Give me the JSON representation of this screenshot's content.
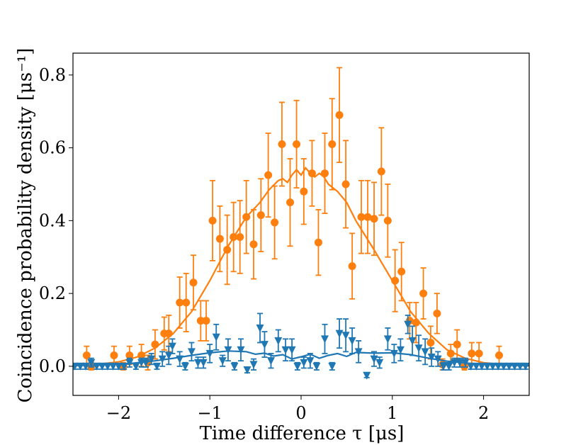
{
  "chart_data": {
    "type": "scatter",
    "title": "",
    "xlabel": "Time difference τ [μs]",
    "ylabel": "Coincidence probability density [μs⁻¹]",
    "xlim": [
      -2.5,
      2.5
    ],
    "ylim": [
      -0.08,
      0.86
    ],
    "xticks": [
      -2,
      -1,
      0,
      1,
      2
    ],
    "xtick_labels": [
      "−2",
      "−1",
      "0",
      "1",
      "2"
    ],
    "yticks": [
      0.0,
      0.2,
      0.4,
      0.6,
      0.8
    ],
    "ytick_labels": [
      "0.0",
      "0.2",
      "0.4",
      "0.6",
      "0.8"
    ],
    "grid": false,
    "series": [
      {
        "name": "orange",
        "marker": "circle",
        "color": "#ff7f0e",
        "points": [
          {
            "x": -2.35,
            "y": 0.03,
            "err": 0.025
          },
          {
            "x": -2.3,
            "y": 0.0,
            "err": 0.01
          },
          {
            "x": -2.05,
            "y": 0.03,
            "err": 0.025
          },
          {
            "x": -1.95,
            "y": 0.0,
            "err": 0.01
          },
          {
            "x": -1.88,
            "y": 0.03,
            "err": 0.025
          },
          {
            "x": -1.75,
            "y": 0.03,
            "err": 0.03
          },
          {
            "x": -1.68,
            "y": 0.01,
            "err": 0.02
          },
          {
            "x": -1.6,
            "y": 0.06,
            "err": 0.04
          },
          {
            "x": -1.5,
            "y": 0.09,
            "err": 0.045
          },
          {
            "x": -1.45,
            "y": 0.09,
            "err": 0.05
          },
          {
            "x": -1.33,
            "y": 0.175,
            "err": 0.07
          },
          {
            "x": -1.26,
            "y": 0.175,
            "err": 0.08
          },
          {
            "x": -1.18,
            "y": 0.23,
            "err": 0.075
          },
          {
            "x": -1.1,
            "y": 0.125,
            "err": 0.055
          },
          {
            "x": -1.04,
            "y": 0.125,
            "err": 0.055
          },
          {
            "x": -0.97,
            "y": 0.4,
            "err": 0.11
          },
          {
            "x": -0.89,
            "y": 0.35,
            "err": 0.09
          },
          {
            "x": -0.81,
            "y": 0.32,
            "err": 0.095
          },
          {
            "x": -0.74,
            "y": 0.355,
            "err": 0.095
          },
          {
            "x": -0.67,
            "y": 0.355,
            "err": 0.1
          },
          {
            "x": -0.6,
            "y": 0.41,
            "err": 0.1
          },
          {
            "x": -0.52,
            "y": 0.335,
            "err": 0.095
          },
          {
            "x": -0.44,
            "y": 0.415,
            "err": 0.1
          },
          {
            "x": -0.36,
            "y": 0.525,
            "err": 0.115
          },
          {
            "x": -0.29,
            "y": 0.395,
            "err": 0.1
          },
          {
            "x": -0.21,
            "y": 0.61,
            "err": 0.115
          },
          {
            "x": -0.12,
            "y": 0.45,
            "err": 0.12
          },
          {
            "x": -0.05,
            "y": 0.61,
            "err": 0.12
          },
          {
            "x": 0.03,
            "y": 0.48,
            "err": 0.09
          },
          {
            "x": 0.12,
            "y": 0.53,
            "err": 0.09
          },
          {
            "x": 0.19,
            "y": 0.34,
            "err": 0.09
          },
          {
            "x": 0.26,
            "y": 0.53,
            "err": 0.11
          },
          {
            "x": 0.34,
            "y": 0.61,
            "err": 0.125
          },
          {
            "x": 0.42,
            "y": 0.69,
            "err": 0.13
          },
          {
            "x": 0.49,
            "y": 0.5,
            "err": 0.12
          },
          {
            "x": 0.56,
            "y": 0.275,
            "err": 0.09
          },
          {
            "x": 0.66,
            "y": 0.41,
            "err": 0.1
          },
          {
            "x": 0.73,
            "y": 0.41,
            "err": 0.1
          },
          {
            "x": 0.8,
            "y": 0.405,
            "err": 0.1
          },
          {
            "x": 0.88,
            "y": 0.535,
            "err": 0.12
          },
          {
            "x": 0.95,
            "y": 0.4,
            "err": 0.1
          },
          {
            "x": 1.03,
            "y": 0.235,
            "err": 0.085
          },
          {
            "x": 1.1,
            "y": 0.26,
            "err": 0.08
          },
          {
            "x": 1.19,
            "y": 0.125,
            "err": 0.05
          },
          {
            "x": 1.26,
            "y": 0.12,
            "err": 0.055
          },
          {
            "x": 1.34,
            "y": 0.2,
            "err": 0.07
          },
          {
            "x": 1.42,
            "y": 0.065,
            "err": 0.045
          },
          {
            "x": 1.49,
            "y": 0.145,
            "err": 0.055
          },
          {
            "x": 1.55,
            "y": 0.005,
            "err": 0.015
          },
          {
            "x": 1.64,
            "y": 0.035,
            "err": 0.025
          },
          {
            "x": 1.71,
            "y": 0.06,
            "err": 0.04
          },
          {
            "x": 1.79,
            "y": 0.0,
            "err": 0.01
          },
          {
            "x": 1.87,
            "y": 0.035,
            "err": 0.03
          },
          {
            "x": 1.95,
            "y": 0.035,
            "err": 0.03
          },
          {
            "x": 2.17,
            "y": 0.03,
            "err": 0.025
          }
        ],
        "fit": {
          "x": [
            -2.5,
            -2.25,
            -2.0,
            -1.8,
            -1.6,
            -1.4,
            -1.2,
            -1.0,
            -0.8,
            -0.6,
            -0.45,
            -0.35,
            -0.25,
            -0.2,
            -0.15,
            -0.1,
            -0.05,
            0.0,
            0.05,
            0.1,
            0.15,
            0.2,
            0.25,
            0.3,
            0.4,
            0.5,
            0.6,
            0.8,
            1.0,
            1.2,
            1.4,
            1.6,
            1.8,
            2.0,
            2.25,
            2.5
          ],
          "y": [
            0.002,
            0.005,
            0.012,
            0.025,
            0.05,
            0.09,
            0.15,
            0.235,
            0.33,
            0.41,
            0.45,
            0.485,
            0.51,
            0.515,
            0.505,
            0.525,
            0.54,
            0.525,
            0.545,
            0.53,
            0.52,
            0.53,
            0.52,
            0.5,
            0.48,
            0.45,
            0.4,
            0.32,
            0.235,
            0.15,
            0.09,
            0.045,
            0.022,
            0.01,
            0.004,
            0.001
          ]
        }
      },
      {
        "name": "blue",
        "marker": "triangle_down",
        "color": "#1f77b4",
        "points": [
          {
            "x": -2.48,
            "y": 0.0,
            "err": 0.008
          },
          {
            "x": -2.42,
            "y": 0.0,
            "err": 0.008
          },
          {
            "x": -2.36,
            "y": 0.0,
            "err": 0.008
          },
          {
            "x": -2.3,
            "y": 0.01,
            "err": 0.012
          },
          {
            "x": -2.24,
            "y": 0.0,
            "err": 0.008
          },
          {
            "x": -2.18,
            "y": 0.0,
            "err": 0.008
          },
          {
            "x": -2.12,
            "y": 0.0,
            "err": 0.008
          },
          {
            "x": -2.06,
            "y": 0.0,
            "err": 0.008
          },
          {
            "x": -2.0,
            "y": 0.0,
            "err": 0.008
          },
          {
            "x": -1.94,
            "y": 0.0,
            "err": 0.008
          },
          {
            "x": -1.88,
            "y": 0.01,
            "err": 0.012
          },
          {
            "x": -1.81,
            "y": 0.0,
            "err": 0.008
          },
          {
            "x": -1.75,
            "y": 0.01,
            "err": 0.012
          },
          {
            "x": -1.7,
            "y": 0.01,
            "err": 0.012
          },
          {
            "x": -1.64,
            "y": 0.02,
            "err": 0.015
          },
          {
            "x": -1.58,
            "y": 0.0,
            "err": 0.008
          },
          {
            "x": -1.52,
            "y": 0.02,
            "err": 0.02
          },
          {
            "x": -1.45,
            "y": 0.03,
            "err": 0.025
          },
          {
            "x": -1.41,
            "y": 0.055,
            "err": 0.02
          },
          {
            "x": -1.33,
            "y": 0.02,
            "err": 0.02
          },
          {
            "x": -1.27,
            "y": 0.0,
            "err": 0.01
          },
          {
            "x": -1.2,
            "y": 0.04,
            "err": 0.025
          },
          {
            "x": -1.13,
            "y": 0.01,
            "err": 0.015
          },
          {
            "x": -1.07,
            "y": 0.01,
            "err": 0.015
          },
          {
            "x": -1.0,
            "y": 0.035,
            "err": 0.025
          },
          {
            "x": -0.93,
            "y": 0.08,
            "err": 0.035
          },
          {
            "x": -0.86,
            "y": 0.015,
            "err": 0.015
          },
          {
            "x": -0.8,
            "y": 0.045,
            "err": 0.03
          },
          {
            "x": -0.73,
            "y": 0.0,
            "err": 0.01
          },
          {
            "x": -0.66,
            "y": 0.045,
            "err": 0.03
          },
          {
            "x": -0.59,
            "y": -0.01,
            "err": 0.008
          },
          {
            "x": -0.52,
            "y": 0.005,
            "err": 0.015
          },
          {
            "x": -0.45,
            "y": 0.105,
            "err": 0.04
          },
          {
            "x": -0.4,
            "y": 0.06,
            "err": 0.035
          },
          {
            "x": -0.33,
            "y": 0.015,
            "err": 0.02
          },
          {
            "x": -0.25,
            "y": 0.07,
            "err": 0.03
          },
          {
            "x": -0.17,
            "y": 0.045,
            "err": 0.03
          },
          {
            "x": -0.1,
            "y": 0.045,
            "err": 0.03
          },
          {
            "x": -0.04,
            "y": 0.0,
            "err": 0.01
          },
          {
            "x": 0.03,
            "y": 0.01,
            "err": 0.015
          },
          {
            "x": 0.1,
            "y": 0.015,
            "err": 0.02
          },
          {
            "x": 0.17,
            "y": 0.0,
            "err": 0.01
          },
          {
            "x": 0.26,
            "y": 0.075,
            "err": 0.04
          },
          {
            "x": 0.34,
            "y": 0.0,
            "err": 0.01
          },
          {
            "x": 0.42,
            "y": 0.09,
            "err": 0.04
          },
          {
            "x": 0.49,
            "y": 0.085,
            "err": 0.045
          },
          {
            "x": 0.56,
            "y": 0.07,
            "err": 0.035
          },
          {
            "x": 0.63,
            "y": 0.04,
            "err": 0.03
          },
          {
            "x": 0.72,
            "y": -0.025,
            "err": 0.006
          },
          {
            "x": 0.8,
            "y": 0.02,
            "err": 0.02
          },
          {
            "x": 0.86,
            "y": 0.01,
            "err": 0.015
          },
          {
            "x": 0.95,
            "y": 0.075,
            "err": 0.03
          },
          {
            "x": 1.02,
            "y": 0.035,
            "err": 0.025
          },
          {
            "x": 1.09,
            "y": 0.045,
            "err": 0.03
          },
          {
            "x": 1.17,
            "y": 0.115,
            "err": 0.025
          },
          {
            "x": 1.22,
            "y": 0.07,
            "err": 0.04
          },
          {
            "x": 1.29,
            "y": 0.05,
            "err": 0.035
          },
          {
            "x": 1.36,
            "y": 0.04,
            "err": 0.035
          },
          {
            "x": 1.43,
            "y": 0.025,
            "err": 0.025
          },
          {
            "x": 1.5,
            "y": 0.02,
            "err": 0.02
          },
          {
            "x": 1.56,
            "y": 0.0,
            "err": 0.01
          },
          {
            "x": 1.62,
            "y": 0.0,
            "err": 0.01
          },
          {
            "x": 1.68,
            "y": 0.01,
            "err": 0.012
          },
          {
            "x": 1.74,
            "y": 0.01,
            "err": 0.012
          },
          {
            "x": 1.8,
            "y": 0.01,
            "err": 0.012
          },
          {
            "x": 1.86,
            "y": 0.0,
            "err": 0.008
          },
          {
            "x": 1.92,
            "y": 0.0,
            "err": 0.008
          },
          {
            "x": 1.98,
            "y": 0.0,
            "err": 0.008
          },
          {
            "x": 2.04,
            "y": 0.0,
            "err": 0.008
          },
          {
            "x": 2.1,
            "y": 0.0,
            "err": 0.008
          },
          {
            "x": 2.16,
            "y": 0.0,
            "err": 0.008
          },
          {
            "x": 2.22,
            "y": 0.0,
            "err": 0.008
          },
          {
            "x": 2.28,
            "y": 0.0,
            "err": 0.008
          },
          {
            "x": 2.34,
            "y": 0.0,
            "err": 0.008
          },
          {
            "x": 2.4,
            "y": 0.0,
            "err": 0.008
          },
          {
            "x": 2.46,
            "y": 0.0,
            "err": 0.008
          }
        ],
        "fit": {
          "x": [
            -2.5,
            -2.2,
            -1.9,
            -1.6,
            -1.4,
            -1.2,
            -1.0,
            -0.8,
            -0.6,
            -0.5,
            -0.4,
            -0.3,
            -0.2,
            -0.1,
            0.0,
            0.1,
            0.2,
            0.3,
            0.4,
            0.5,
            0.6,
            0.8,
            1.0,
            1.2,
            1.4,
            1.6,
            1.9,
            2.2,
            2.5
          ],
          "y": [
            0.002,
            0.003,
            0.007,
            0.015,
            0.022,
            0.03,
            0.037,
            0.042,
            0.04,
            0.033,
            0.036,
            0.028,
            0.032,
            0.02,
            0.026,
            0.033,
            0.022,
            0.03,
            0.035,
            0.027,
            0.038,
            0.036,
            0.037,
            0.032,
            0.022,
            0.014,
            0.007,
            0.003,
            0.002
          ]
        }
      }
    ]
  }
}
